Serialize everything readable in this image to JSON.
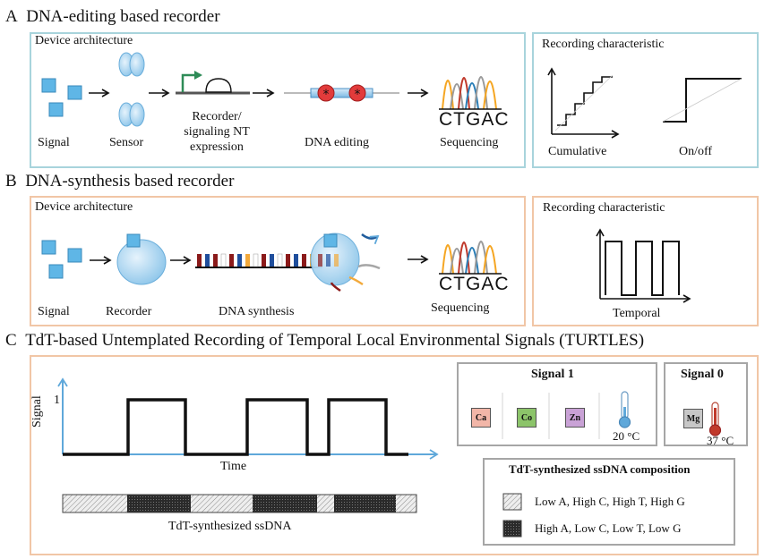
{
  "panel_a": {
    "letter": "A",
    "title": "DNA-editing based recorder",
    "device_label": "Device architecture",
    "steps": {
      "signal": "Signal",
      "sensor": "Sensor",
      "expression_line1": "Recorder/",
      "expression_line2": "signaling NT",
      "expression_line3": "expression",
      "editing": "DNA editing",
      "sequencing": "Sequencing"
    },
    "seq_text": "CTGAC",
    "char_label": "Recording characteristic",
    "char_cumulative": "Cumulative",
    "char_onoff": "On/off"
  },
  "panel_b": {
    "letter": "B",
    "title": "DNA-synthesis based recorder",
    "device_label": "Device architecture",
    "steps": {
      "signal": "Signal",
      "recorder": "Recorder",
      "synthesis": "DNA synthesis",
      "sequencing": "Sequencing"
    },
    "seq_text": "CTGAC",
    "char_label": "Recording characteristic",
    "char_temporal": "Temporal"
  },
  "panel_c": {
    "letter": "C",
    "title": "TdT-based Untemplated Recording of Temporal Local Environmental Signals (TURTLES)",
    "y_label": "Signal",
    "y_tick": "1",
    "x_label": "Time",
    "ssdna_label": "TdT-synthesized ssDNA",
    "signal1": {
      "title": "Signal 1",
      "items": [
        "Ca",
        "Co",
        "Zn"
      ],
      "temp": "20 °C"
    },
    "signal0": {
      "title": "Signal 0",
      "item": "Mg",
      "temp": "37 °C"
    },
    "legend": {
      "title": "TdT-synthesized ssDNA composition",
      "light": "Low A, High C, High T, High G",
      "dark": "High A, Low C, Low T, Low G"
    }
  },
  "colors": {
    "accent_blue": "#5fa8da",
    "box_blue": "#a8d4dc",
    "box_peach": "#f1c6a6",
    "arrow_green": "#2e8b57",
    "ca_chip": "#f2b6a8",
    "co_chip": "#8cc46a",
    "zn_chip": "#c9a2d6",
    "mg_chip": "#c7c7c7"
  }
}
